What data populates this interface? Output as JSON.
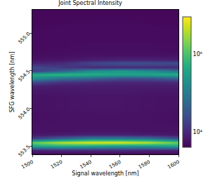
{
  "chart_data": {
    "type": "heatmap",
    "title": "Joint Spectral Intensity",
    "x_label": "Signal wavelength [nm]",
    "y_label": "SFG wavelength [nm]",
    "xlim": [
      1500,
      1600
    ],
    "xticks": [
      1500,
      1520,
      1540,
      1560,
      1580,
      1600
    ],
    "ylim": [
      553.39,
      555.31
    ],
    "yticks": [
      {
        "value": 553.5,
        "label": "553.5"
      },
      {
        "value": 554,
        "label": "554.0"
      },
      {
        "value": 554.5,
        "label": "554.5"
      },
      {
        "value": 555,
        "label": "555.0"
      }
    ],
    "x": [
      1500,
      1520,
      1540,
      1560,
      1580,
      1600
    ],
    "y": [
      553.4,
      553.45,
      553.5,
      553.55,
      553.6,
      553.65,
      553.7,
      553.75,
      553.8,
      553.85,
      553.9,
      553.95,
      554.0,
      554.05,
      554.1,
      554.15,
      554.2,
      554.25,
      554.3,
      554.35,
      554.4,
      554.45,
      554.5,
      554.55,
      554.6,
      554.65,
      554.7,
      554.75,
      554.8,
      554.85,
      554.9,
      554.95,
      555.0,
      555.05,
      555.1,
      555.15,
      555.2,
      555.25,
      555.3
    ],
    "cells": [
      [
        7000,
        7000,
        7000,
        7000,
        7000,
        7000
      ],
      [
        9000,
        10000,
        10000,
        10000,
        9500,
        9000
      ],
      [
        60000,
        70000,
        60000,
        50000,
        50000,
        60000
      ],
      [
        120000,
        200000,
        250000,
        250000,
        200000,
        120000
      ],
      [
        12000,
        20000,
        30000,
        30000,
        25000,
        15000
      ],
      [
        8000,
        8500,
        9000,
        9000,
        8500,
        8000
      ],
      [
        7500,
        7500,
        7800,
        7800,
        7500,
        7500
      ],
      [
        7500,
        7500,
        7500,
        7500,
        7500,
        7500
      ],
      [
        7300,
        7500,
        7500,
        7500,
        7500,
        7300
      ],
      [
        7300,
        7500,
        7500,
        7500,
        7500,
        7300
      ],
      [
        7300,
        7500,
        7500,
        7500,
        7500,
        7300
      ],
      [
        7300,
        7500,
        7600,
        7600,
        7500,
        7300
      ],
      [
        7500,
        7600,
        7800,
        7800,
        7600,
        7500
      ],
      [
        7500,
        7600,
        7800,
        7800,
        7600,
        7500
      ],
      [
        7500,
        7600,
        7800,
        7800,
        7600,
        7500
      ],
      [
        7500,
        7600,
        7800,
        7800,
        7600,
        7500
      ],
      [
        7800,
        7800,
        8000,
        8000,
        7800,
        7800
      ],
      [
        8000,
        8000,
        8200,
        8200,
        8000,
        8000
      ],
      [
        9000,
        8500,
        8500,
        8500,
        8500,
        8500
      ],
      [
        15000,
        11000,
        10000,
        9500,
        9500,
        10000
      ],
      [
        40000,
        25000,
        20000,
        15000,
        15000,
        20000
      ],
      [
        70000,
        80000,
        70000,
        60000,
        60000,
        70000
      ],
      [
        12000,
        20000,
        40000,
        50000,
        40000,
        25000
      ],
      [
        15000,
        12000,
        10000,
        10000,
        10000,
        10000
      ],
      [
        9000,
        10000,
        14000,
        16000,
        16000,
        15000
      ],
      [
        7500,
        7800,
        8500,
        9000,
        9000,
        8500
      ],
      [
        7200,
        7300,
        7500,
        7500,
        7500,
        7500
      ],
      [
        7000,
        7200,
        7300,
        7300,
        7300,
        7200
      ],
      [
        7000,
        7000,
        7200,
        7200,
        7200,
        7000
      ],
      [
        7000,
        7000,
        7200,
        7200,
        7200,
        7000
      ],
      [
        7000,
        7000,
        7000,
        7000,
        7000,
        7000
      ],
      [
        7000,
        7000,
        7000,
        7000,
        7000,
        7000
      ],
      [
        7000,
        7000,
        7000,
        7000,
        7000,
        7000
      ],
      [
        7000,
        7000,
        7000,
        7000,
        7000,
        7000
      ],
      [
        6800,
        7000,
        7000,
        7000,
        7000,
        6800
      ],
      [
        6800,
        6800,
        7000,
        7000,
        6800,
        6800
      ],
      [
        6800,
        6800,
        6800,
        6800,
        6800,
        6800
      ],
      [
        6800,
        6800,
        6800,
        6800,
        6800,
        6800
      ],
      [
        6800,
        6800,
        6800,
        6800,
        6800,
        6800
      ]
    ],
    "colorbar": {
      "lim": [
        6300,
        300000
      ],
      "ticks": [
        {
          "value": 10000,
          "label": "10⁴"
        },
        {
          "value": 100000,
          "label": "10⁵"
        }
      ],
      "log": true
    },
    "color": "Viridis"
  }
}
